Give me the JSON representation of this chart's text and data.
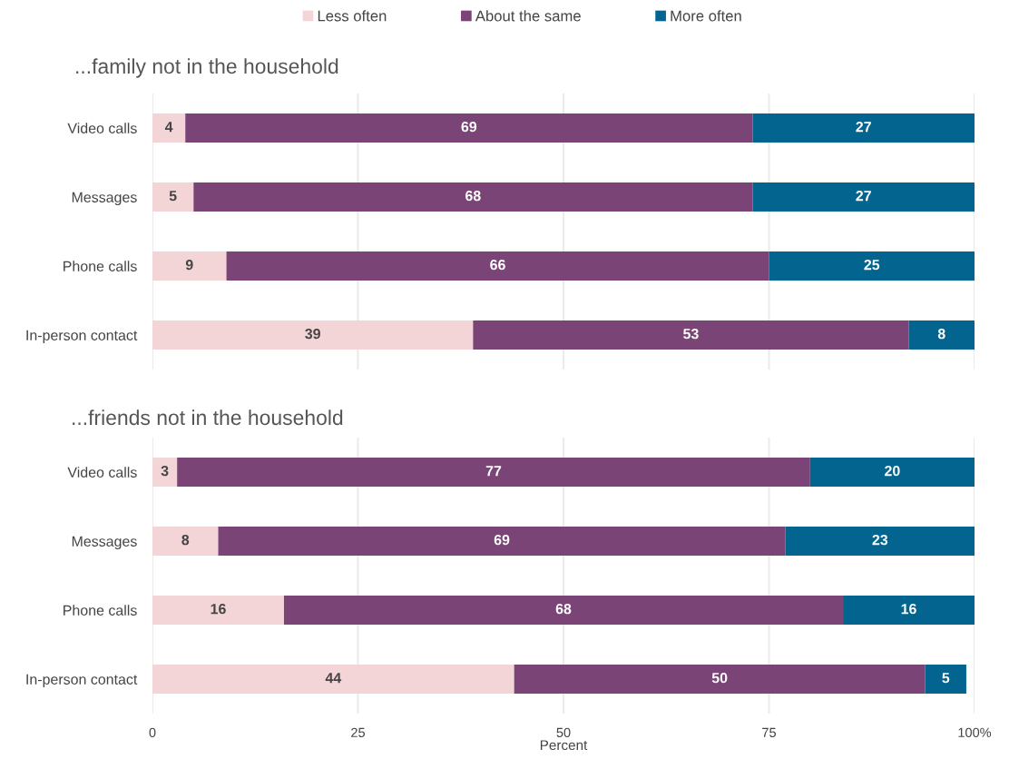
{
  "chart_data": [
    {
      "type": "bar",
      "orientation": "horizontal",
      "stacked": true,
      "title": "...family not in the household",
      "categories": [
        "Video calls",
        "Messages",
        "Phone calls",
        "In-person contact"
      ],
      "series": [
        {
          "name": "Less often",
          "color": "#f3d5d8",
          "values": [
            4,
            5,
            9,
            39
          ]
        },
        {
          "name": "About the same",
          "color": "#7a4476",
          "values": [
            69,
            68,
            66,
            53
          ]
        },
        {
          "name": "More often",
          "color": "#03658f",
          "values": [
            27,
            27,
            25,
            8
          ]
        }
      ],
      "xlim": [
        0,
        100
      ],
      "xticks": [
        0,
        25,
        50,
        75,
        100
      ],
      "grid": "x",
      "legend": "top",
      "data_labels": true,
      "tick_labels": "y"
    },
    {
      "type": "bar",
      "orientation": "horizontal",
      "stacked": true,
      "title": "...friends not in the household",
      "categories": [
        "Video calls",
        "Messages",
        "Phone calls",
        "In-person contact"
      ],
      "series": [
        {
          "color": "#f3d5d8",
          "values": [
            3,
            8,
            16,
            44
          ]
        },
        {
          "color": "#7a4476",
          "values": [
            77,
            69,
            68,
            50
          ]
        },
        {
          "color": "#03658f",
          "values": [
            20,
            23,
            16,
            5
          ]
        }
      ],
      "xlim": [
        0,
        100
      ],
      "xticks": [
        0,
        25,
        50,
        75,
        {
          "value": 100,
          "label": "100%"
        }
      ],
      "xlabel": "Percent",
      "grid": "x",
      "data_labels": true
    }
  ]
}
